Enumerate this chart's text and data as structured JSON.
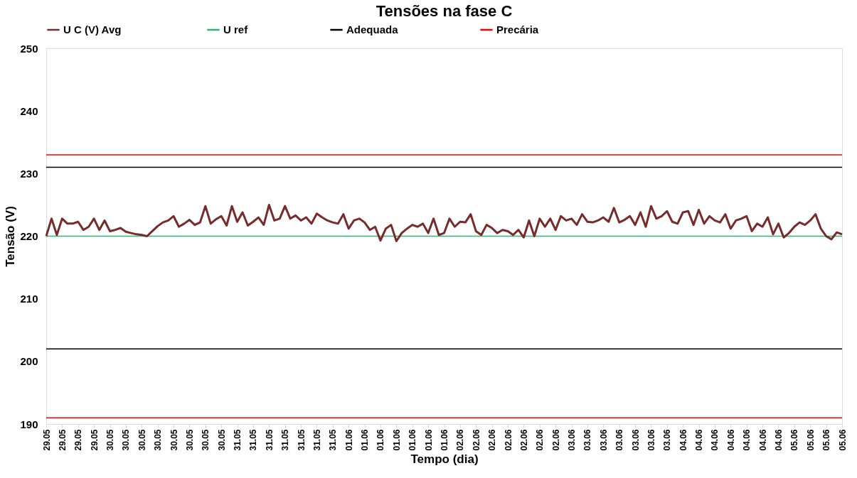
{
  "chart_data": {
    "type": "line",
    "title": "Tensões na fase C",
    "xlabel": "Tempo (dia)",
    "ylabel": "Tensão (V)",
    "categories": [
      "29.05",
      null,
      null,
      "29.05",
      null,
      null,
      "29.05",
      null,
      null,
      "29.05",
      null,
      null,
      "30.05",
      null,
      null,
      "30.05",
      null,
      null,
      "30.05",
      null,
      null,
      "30.05",
      null,
      null,
      "30.05",
      null,
      null,
      "30.05",
      null,
      null,
      "30.05",
      null,
      null,
      "30.05",
      null,
      null,
      "31.05",
      null,
      null,
      "31.05",
      null,
      null,
      "31.05",
      null,
      null,
      "31.05",
      null,
      null,
      "31.05",
      null,
      null,
      "31.05",
      null,
      null,
      "31.05",
      null,
      null,
      "01.06",
      null,
      null,
      "01.06",
      null,
      null,
      "01.06",
      null,
      null,
      "01.06",
      null,
      null,
      "01.06",
      null,
      null,
      "01.06",
      null,
      null,
      "01.06",
      null,
      null,
      "02.06",
      null,
      null,
      "02.06",
      null,
      null,
      "02.06",
      null,
      null,
      "02.06",
      null,
      null,
      "02.06",
      null,
      null,
      "02.06",
      null,
      null,
      "02.06",
      null,
      null,
      "03.06",
      null,
      null,
      "03.06",
      null,
      null,
      "03.06",
      null,
      null,
      "03.06",
      null,
      null,
      "03.06",
      null,
      null,
      "03.06",
      null,
      null,
      "03.06",
      null,
      null,
      "04.06",
      null,
      null,
      "04.06",
      null,
      null,
      "04.06",
      null,
      null,
      "04.06",
      null,
      null,
      "04.06",
      null,
      null,
      "04.06",
      null,
      null,
      "04.06",
      null,
      null,
      "05.06",
      null,
      null,
      "05.06",
      null,
      null,
      "05.06",
      null,
      null,
      "05.06"
    ],
    "series": [
      {
        "name": "U C (V)  Avg",
        "color": "#772b2b",
        "values": [
          220,
          222.8,
          220.2,
          222.8,
          222,
          222,
          222.3,
          221,
          221.5,
          222.8,
          221,
          222.5,
          220.8,
          221,
          221.3,
          220.7,
          220.5,
          220.3,
          220.2,
          220,
          220.8,
          221.6,
          222.2,
          222.5,
          223.2,
          221.5,
          222,
          222.6,
          221.8,
          222.2,
          224.8,
          222,
          222.7,
          223.2,
          221.7,
          224.8,
          222.3,
          223.8,
          221.7,
          222.3,
          223,
          221.8,
          225,
          222.5,
          222.8,
          224.8,
          222.8,
          223.3,
          222.5,
          223,
          222,
          223.6,
          223,
          222.5,
          222.2,
          222,
          223.5,
          221.2,
          222.5,
          222.8,
          222.2,
          221,
          221.5,
          219.3,
          221.2,
          221.8,
          219.2,
          220.5,
          221.2,
          221.8,
          221.5,
          222,
          220.5,
          222.8,
          220.2,
          220.5,
          222.8,
          221.5,
          222.3,
          222.2,
          223.5,
          220.8,
          220.2,
          221.8,
          221.3,
          220.5,
          221,
          220.8,
          220.2,
          221,
          219.8,
          222.5,
          220,
          222.8,
          221.5,
          222.8,
          221,
          223.2,
          222.5,
          222.8,
          221.8,
          223.5,
          222.3,
          222.2,
          222.5,
          223,
          222.3,
          224.5,
          222.2,
          222.6,
          223.2,
          221.8,
          223.8,
          221.5,
          224.8,
          222.8,
          223.2,
          224,
          222.3,
          222,
          223.8,
          224,
          221.8,
          224.2,
          222,
          223.2,
          222.5,
          222.2,
          223.5,
          221.2,
          222.5,
          222.8,
          223.2,
          220.8,
          222,
          221.5,
          223,
          220.3,
          222,
          219.8,
          220.5,
          221.5,
          222.2,
          221.8,
          222.5,
          223.5,
          221.2,
          220,
          219.5,
          220.6,
          220.3
        ]
      },
      {
        "name": "U ref",
        "color": "#2db56b",
        "values": [
          220,
          220,
          220,
          220,
          220,
          220,
          220,
          220,
          220,
          220,
          220,
          220,
          220,
          220,
          220,
          220,
          220,
          220,
          220,
          220,
          220,
          220,
          220,
          220,
          220,
          220,
          220,
          220,
          220,
          220,
          220,
          220,
          220,
          220,
          220,
          220,
          220,
          220,
          220,
          220,
          220,
          220,
          220,
          220,
          220,
          220,
          220,
          220,
          220,
          220,
          220,
          220,
          220,
          220,
          220,
          220,
          220,
          220,
          220,
          220,
          220,
          220,
          220,
          220,
          220,
          220,
          220,
          220,
          220,
          220,
          220,
          220,
          220,
          220,
          220,
          220,
          220,
          220,
          220,
          220,
          220,
          220,
          220,
          220,
          220,
          220,
          220,
          220,
          220,
          220,
          220,
          220,
          220,
          220,
          220,
          220,
          220,
          220,
          220,
          220,
          220,
          220,
          220,
          220,
          220,
          220,
          220,
          220,
          220,
          220,
          220,
          220,
          220,
          220,
          220,
          220,
          220,
          220,
          220,
          220,
          220,
          220,
          220,
          220,
          220,
          220,
          220,
          220,
          220,
          220,
          220,
          220,
          220,
          220,
          220,
          220,
          220,
          220,
          220,
          220,
          220,
          220,
          220,
          220,
          220,
          220,
          220,
          220,
          220,
          220,
          220
        ]
      },
      {
        "name": "Adequada",
        "color": "#000000",
        "values": [
          231,
          231,
          231,
          231,
          231,
          231,
          231,
          231,
          231,
          231,
          231,
          231,
          231,
          231,
          231,
          231,
          231,
          231,
          231,
          231,
          231,
          231,
          231,
          231,
          231,
          231,
          231,
          231,
          231,
          231,
          231,
          231,
          231,
          231,
          231,
          231,
          231,
          231,
          231,
          231,
          231,
          231,
          231,
          231,
          231,
          231,
          231,
          231,
          231,
          231,
          231,
          231,
          231,
          231,
          231,
          231,
          231,
          231,
          231,
          231,
          231,
          231,
          231,
          231,
          231,
          231,
          231,
          231,
          231,
          231,
          231,
          231,
          231,
          231,
          231,
          231,
          231,
          231,
          231,
          231,
          231,
          231,
          231,
          231,
          231,
          231,
          231,
          231,
          231,
          231,
          231,
          231,
          231,
          231,
          231,
          231,
          231,
          231,
          231,
          231,
          231,
          231,
          231,
          231,
          231,
          231,
          231,
          231,
          231,
          231,
          231,
          231,
          231,
          231,
          231,
          231,
          231,
          231,
          231,
          231,
          231,
          231,
          231,
          231,
          231,
          231,
          231,
          231,
          231,
          231,
          231,
          231,
          231,
          231,
          231,
          231,
          231,
          231,
          231,
          231,
          231,
          231,
          231,
          231,
          231,
          231,
          231,
          231,
          231,
          231,
          231
        ]
      },
      {
        "name": "Precária",
        "color": "#ff0000",
        "values": [
          233,
          233,
          233,
          233,
          233,
          233,
          233,
          233,
          233,
          233,
          233,
          233,
          233,
          233,
          233,
          233,
          233,
          233,
          233,
          233,
          233,
          233,
          233,
          233,
          233,
          233,
          233,
          233,
          233,
          233,
          233,
          233,
          233,
          233,
          233,
          233,
          233,
          233,
          233,
          233,
          233,
          233,
          233,
          233,
          233,
          233,
          233,
          233,
          233,
          233,
          233,
          233,
          233,
          233,
          233,
          233,
          233,
          233,
          233,
          233,
          233,
          233,
          233,
          233,
          233,
          233,
          233,
          233,
          233,
          233,
          233,
          233,
          233,
          233,
          233,
          233,
          233,
          233,
          233,
          233,
          233,
          233,
          233,
          233,
          233,
          233,
          233,
          233,
          233,
          233,
          233,
          233,
          233,
          233,
          233,
          233,
          233,
          233,
          233,
          233,
          233,
          233,
          233,
          233,
          233,
          233,
          233,
          233,
          233,
          233,
          233,
          233,
          233,
          233,
          233,
          233,
          233,
          233,
          233,
          233,
          233,
          233,
          233,
          233,
          233,
          233,
          233,
          233,
          233,
          233,
          233,
          233,
          233,
          233,
          233,
          233,
          233,
          233,
          233,
          233,
          233,
          233,
          233,
          233,
          233,
          233,
          233,
          233,
          233,
          233,
          233
        ]
      },
      {
        "color": "#000000",
        "values": [
          202,
          202,
          202,
          202,
          202,
          202,
          202,
          202,
          202,
          202,
          202,
          202,
          202,
          202,
          202,
          202,
          202,
          202,
          202,
          202,
          202,
          202,
          202,
          202,
          202,
          202,
          202,
          202,
          202,
          202,
          202,
          202,
          202,
          202,
          202,
          202,
          202,
          202,
          202,
          202,
          202,
          202,
          202,
          202,
          202,
          202,
          202,
          202,
          202,
          202,
          202,
          202,
          202,
          202,
          202,
          202,
          202,
          202,
          202,
          202,
          202,
          202,
          202,
          202,
          202,
          202,
          202,
          202,
          202,
          202,
          202,
          202,
          202,
          202,
          202,
          202,
          202,
          202,
          202,
          202,
          202,
          202,
          202,
          202,
          202,
          202,
          202,
          202,
          202,
          202,
          202,
          202,
          202,
          202,
          202,
          202,
          202,
          202,
          202,
          202,
          202,
          202,
          202,
          202,
          202,
          202,
          202,
          202,
          202,
          202,
          202,
          202,
          202,
          202,
          202,
          202,
          202,
          202,
          202,
          202,
          202,
          202,
          202,
          202,
          202,
          202,
          202,
          202,
          202,
          202,
          202,
          202,
          202,
          202,
          202,
          202,
          202,
          202,
          202,
          202,
          202,
          202,
          202,
          202,
          202,
          202,
          202,
          202,
          202,
          202,
          202
        ]
      },
      {
        "color": "#ff0000",
        "values": [
          191,
          191,
          191,
          191,
          191,
          191,
          191,
          191,
          191,
          191,
          191,
          191,
          191,
          191,
          191,
          191,
          191,
          191,
          191,
          191,
          191,
          191,
          191,
          191,
          191,
          191,
          191,
          191,
          191,
          191,
          191,
          191,
          191,
          191,
          191,
          191,
          191,
          191,
          191,
          191,
          191,
          191,
          191,
          191,
          191,
          191,
          191,
          191,
          191,
          191,
          191,
          191,
          191,
          191,
          191,
          191,
          191,
          191,
          191,
          191,
          191,
          191,
          191,
          191,
          191,
          191,
          191,
          191,
          191,
          191,
          191,
          191,
          191,
          191,
          191,
          191,
          191,
          191,
          191,
          191,
          191,
          191,
          191,
          191,
          191,
          191,
          191,
          191,
          191,
          191,
          191,
          191,
          191,
          191,
          191,
          191,
          191,
          191,
          191,
          191,
          191,
          191,
          191,
          191,
          191,
          191,
          191,
          191,
          191,
          191,
          191,
          191,
          191,
          191,
          191,
          191,
          191,
          191,
          191,
          191,
          191,
          191,
          191,
          191,
          191,
          191,
          191,
          191,
          191,
          191,
          191,
          191,
          191,
          191,
          191,
          191,
          191,
          191,
          191,
          191,
          191,
          191,
          191,
          191,
          191,
          191,
          191,
          191,
          191,
          191,
          191
        ]
      }
    ],
    "ylim": [
      190,
      250
    ],
    "yticks": [
      190,
      200,
      210,
      220,
      230,
      240,
      250
    ],
    "grid": false,
    "legend": "top",
    "marker": "none",
    "line_style": "solid"
  }
}
